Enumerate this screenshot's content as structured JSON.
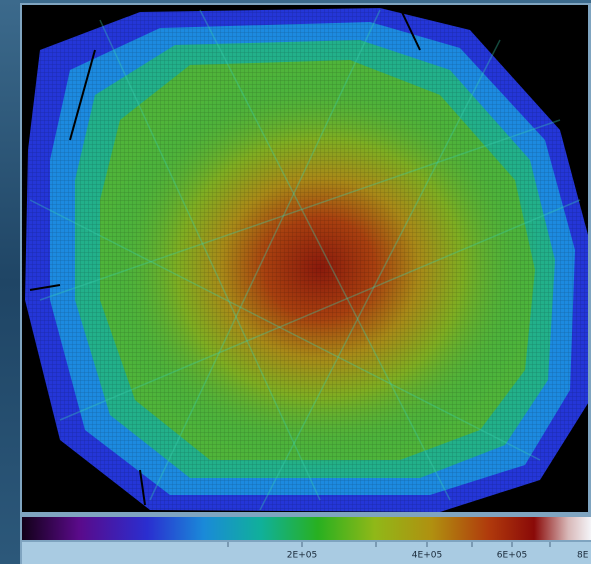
{
  "colorbar": {
    "tick_labels": [
      "2E+05",
      "4E+05",
      "6E+05",
      "8E"
    ]
  }
}
